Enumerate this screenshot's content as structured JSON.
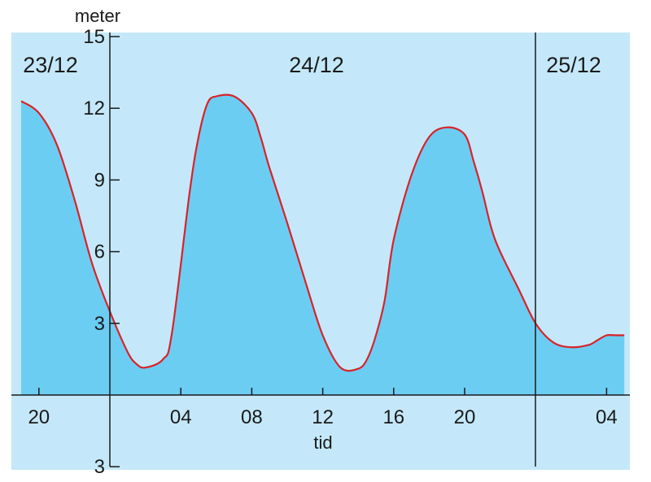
{
  "chart_data": {
    "type": "area",
    "ylabel": "meter",
    "xlabel": "tid",
    "ylim": [
      0,
      15
    ],
    "y_ticks": [
      3,
      6,
      9,
      12,
      15
    ],
    "y_below_tick": "3",
    "x_ticks": [
      "20",
      "04",
      "08",
      "12",
      "16",
      "20",
      "04"
    ],
    "day_labels": [
      "23/12",
      "24/12",
      "25/12"
    ],
    "colors": {
      "background": "#c4e8f9",
      "fill": "#6ccdf3",
      "line": "#d8232a",
      "axis": "#1a1a1a"
    },
    "series": [
      {
        "x": [
          19.0,
          20.0,
          21.0,
          22.0,
          23.0,
          24.0,
          25.0,
          25.5,
          26.0,
          27.0,
          27.5,
          28.5,
          29.0,
          29.5,
          30.0,
          31.0,
          32.0,
          32.5,
          33.0,
          34.0,
          35.0,
          36.0,
          37.0,
          38.0,
          38.5,
          39.0,
          39.5,
          40.0,
          41.0,
          42.0,
          43.0,
          44.0,
          44.5,
          45.0,
          45.5,
          46.0,
          47.0,
          48.0,
          49.0,
          50.0,
          51.0,
          51.5,
          52.0,
          52.5,
          53.0
        ],
        "values": [
          12.3,
          11.8,
          10.5,
          8.2,
          5.5,
          3.5,
          1.8,
          1.3,
          1.15,
          1.5,
          2.6,
          8.5,
          10.8,
          12.2,
          12.5,
          12.5,
          11.8,
          10.8,
          9.5,
          7.2,
          4.8,
          2.5,
          1.15,
          1.1,
          1.5,
          2.5,
          4.0,
          6.5,
          9.2,
          10.8,
          11.2,
          10.9,
          9.8,
          8.5,
          7.0,
          6.0,
          4.5,
          3.0,
          2.2,
          2.0,
          2.1,
          2.3,
          2.5,
          2.5,
          2.5
        ]
      }
    ]
  }
}
